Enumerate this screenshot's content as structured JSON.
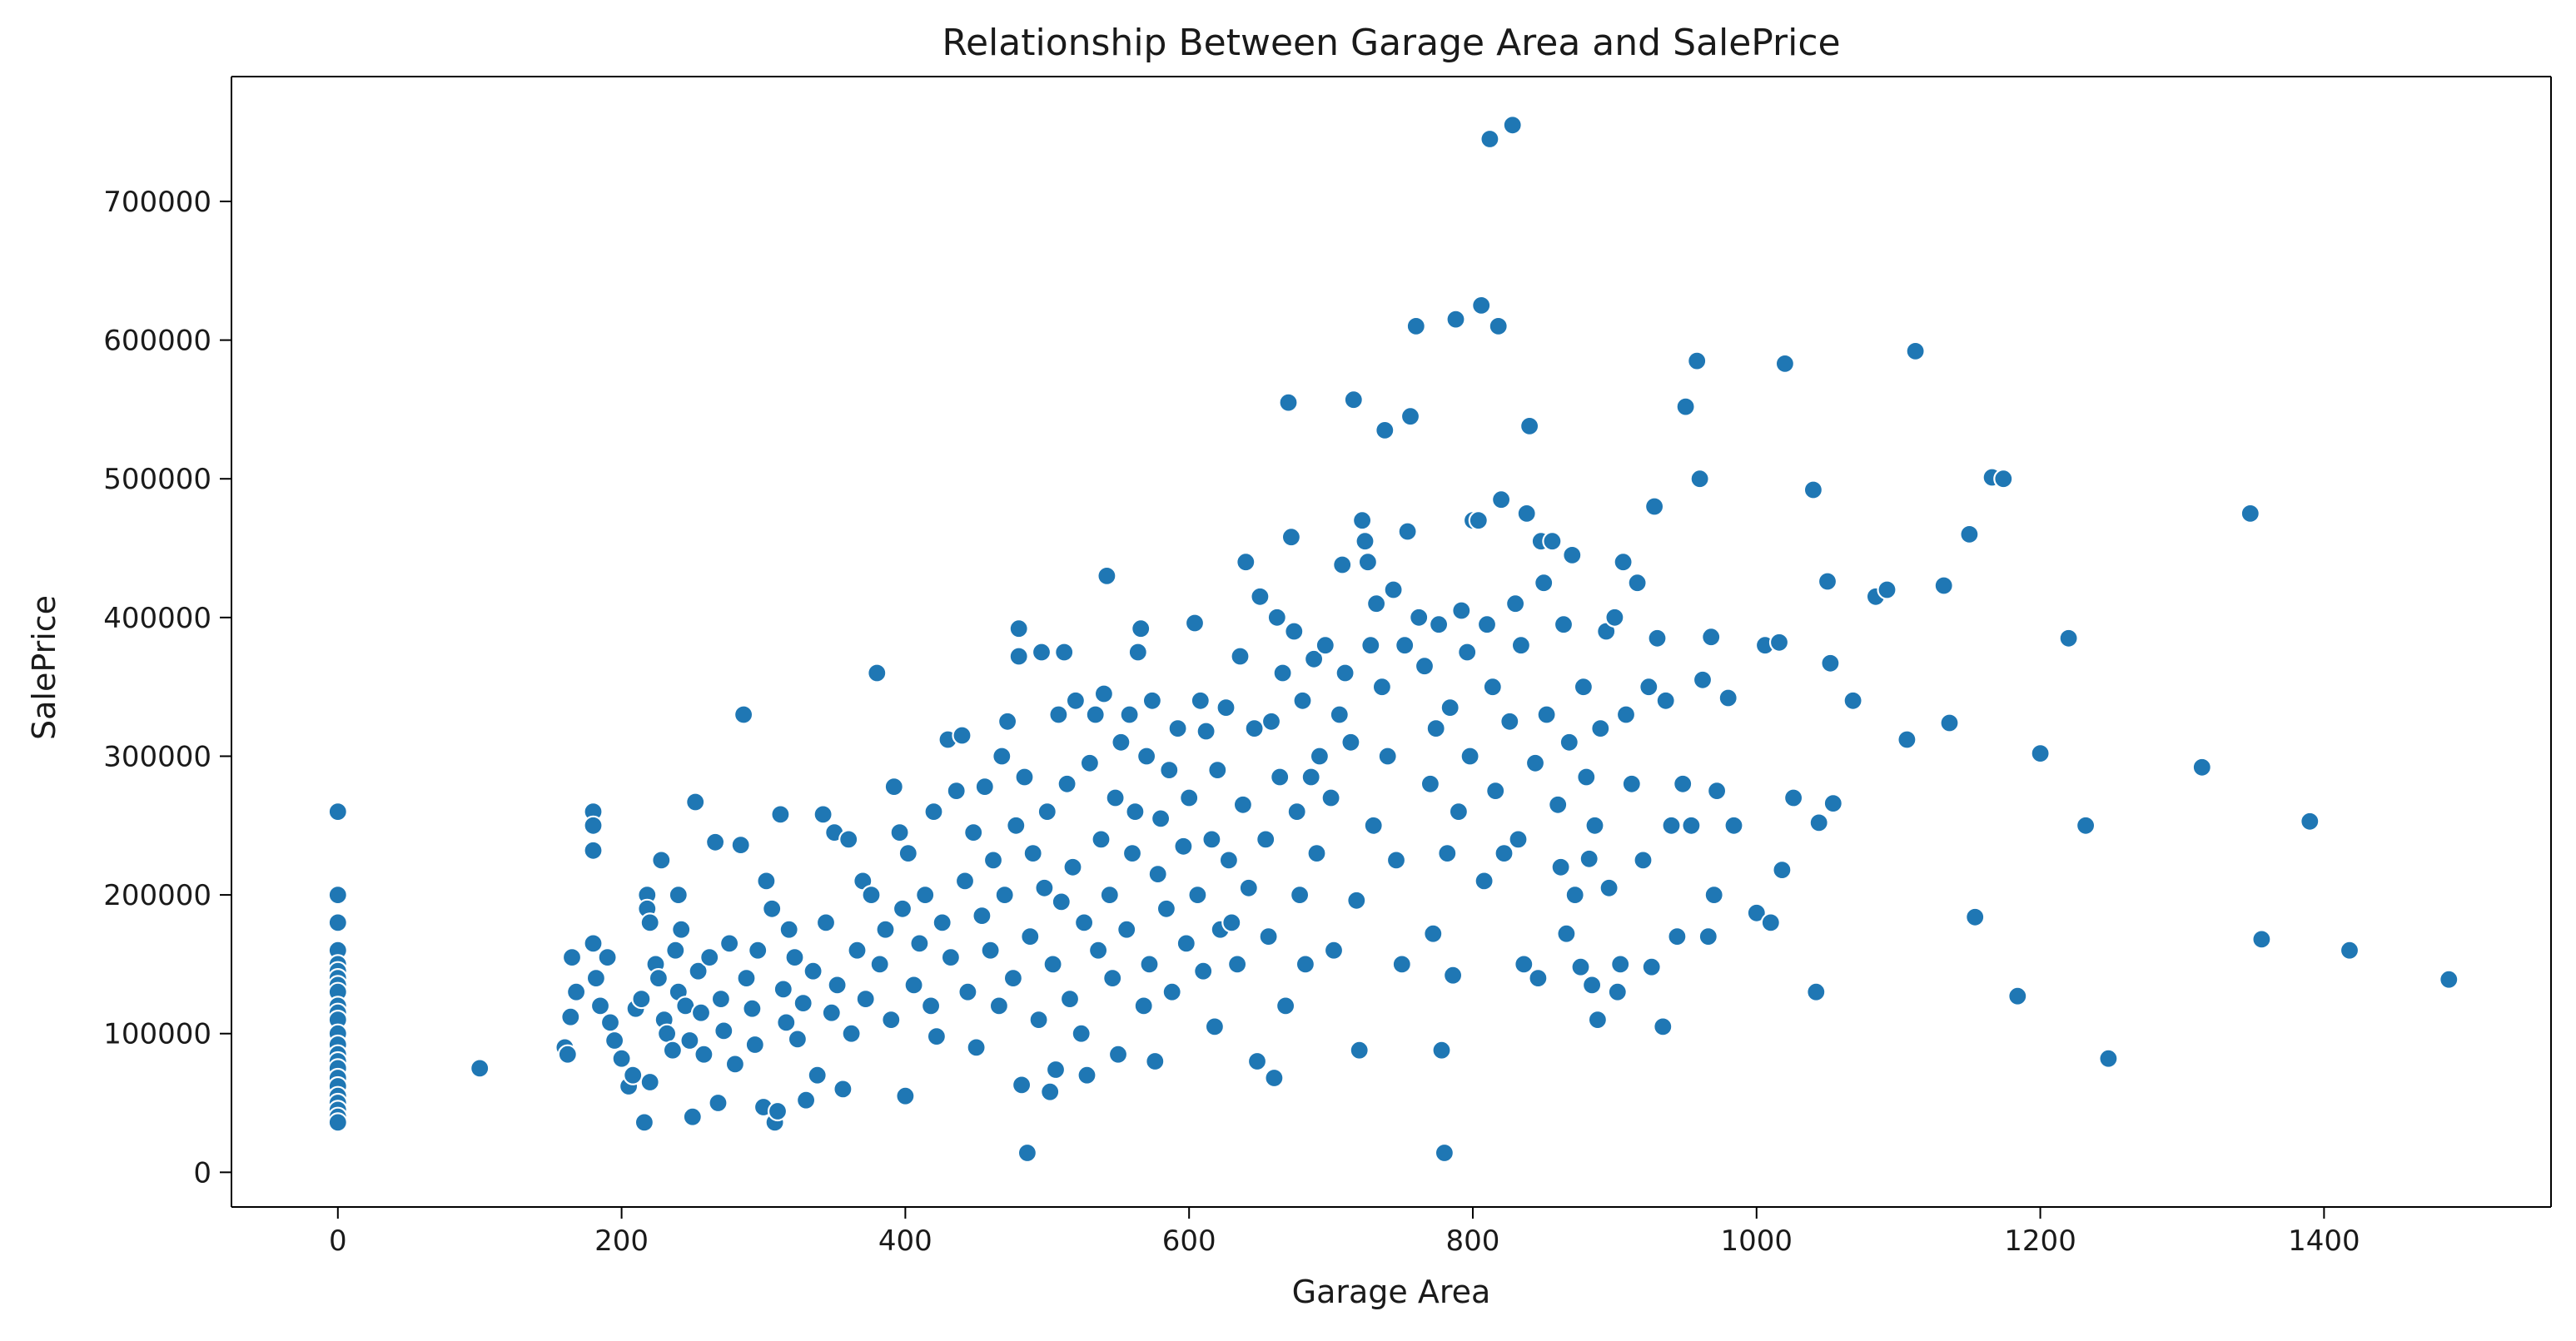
{
  "chart_data": {
    "type": "scatter",
    "title": "Relationship Between Garage Area and SalePrice",
    "xlabel": "Garage Area",
    "ylabel": "SalePrice",
    "xlim": [
      -75,
      1560
    ],
    "ylim": [
      -25000,
      790000
    ],
    "xticks": [
      0,
      200,
      400,
      600,
      800,
      1000,
      1200,
      1400
    ],
    "yticks": [
      0,
      100000,
      200000,
      300000,
      400000,
      500000,
      600000,
      700000
    ],
    "grid": false,
    "colors": {
      "points": "#1f77b4",
      "point_edge": "#ffffff"
    },
    "points": [
      [
        0,
        260000
      ],
      [
        0,
        200000
      ],
      [
        0,
        180000
      ],
      [
        0,
        160000
      ],
      [
        0,
        150000
      ],
      [
        0,
        145000
      ],
      [
        0,
        140000
      ],
      [
        0,
        135000
      ],
      [
        0,
        130000
      ],
      [
        0,
        120000
      ],
      [
        0,
        115000
      ],
      [
        0,
        110000
      ],
      [
        0,
        100000
      ],
      [
        0,
        92000
      ],
      [
        0,
        85000
      ],
      [
        0,
        80000
      ],
      [
        0,
        75000
      ],
      [
        0,
        68000
      ],
      [
        0,
        62000
      ],
      [
        0,
        55000
      ],
      [
        0,
        50000
      ],
      [
        0,
        45000
      ],
      [
        0,
        40000
      ],
      [
        0,
        36000
      ],
      [
        100,
        75000
      ],
      [
        160,
        90000
      ],
      [
        162,
        85000
      ],
      [
        164,
        112000
      ],
      [
        165,
        155000
      ],
      [
        168,
        130000
      ],
      [
        180,
        260000
      ],
      [
        180,
        250000
      ],
      [
        180,
        232000
      ],
      [
        180,
        165000
      ],
      [
        182,
        140000
      ],
      [
        185,
        120000
      ],
      [
        190,
        155000
      ],
      [
        192,
        108000
      ],
      [
        195,
        95000
      ],
      [
        200,
        82000
      ],
      [
        205,
        62000
      ],
      [
        208,
        70000
      ],
      [
        210,
        118000
      ],
      [
        214,
        125000
      ],
      [
        216,
        36000
      ],
      [
        218,
        200000
      ],
      [
        218,
        190000
      ],
      [
        220,
        180000
      ],
      [
        220,
        65000
      ],
      [
        224,
        150000
      ],
      [
        226,
        140000
      ],
      [
        228,
        225000
      ],
      [
        230,
        110000
      ],
      [
        232,
        100000
      ],
      [
        236,
        88000
      ],
      [
        238,
        160000
      ],
      [
        240,
        200000
      ],
      [
        240,
        130000
      ],
      [
        242,
        175000
      ],
      [
        245,
        120000
      ],
      [
        248,
        95000
      ],
      [
        250,
        40000
      ],
      [
        252,
        267000
      ],
      [
        254,
        145000
      ],
      [
        256,
        115000
      ],
      [
        258,
        85000
      ],
      [
        262,
        155000
      ],
      [
        266,
        238000
      ],
      [
        268,
        50000
      ],
      [
        270,
        125000
      ],
      [
        272,
        102000
      ],
      [
        276,
        165000
      ],
      [
        280,
        78000
      ],
      [
        284,
        236000
      ],
      [
        286,
        330000
      ],
      [
        288,
        140000
      ],
      [
        292,
        118000
      ],
      [
        294,
        92000
      ],
      [
        296,
        160000
      ],
      [
        300,
        47000
      ],
      [
        302,
        210000
      ],
      [
        306,
        190000
      ],
      [
        308,
        36000
      ],
      [
        310,
        44000
      ],
      [
        312,
        258000
      ],
      [
        314,
        132000
      ],
      [
        316,
        108000
      ],
      [
        318,
        175000
      ],
      [
        322,
        155000
      ],
      [
        324,
        96000
      ],
      [
        328,
        122000
      ],
      [
        330,
        52000
      ],
      [
        335,
        145000
      ],
      [
        338,
        70000
      ],
      [
        342,
        258000
      ],
      [
        344,
        180000
      ],
      [
        348,
        115000
      ],
      [
        350,
        245000
      ],
      [
        352,
        135000
      ],
      [
        356,
        60000
      ],
      [
        360,
        240000
      ],
      [
        362,
        100000
      ],
      [
        366,
        160000
      ],
      [
        370,
        210000
      ],
      [
        372,
        125000
      ],
      [
        376,
        200000
      ],
      [
        380,
        360000
      ],
      [
        382,
        150000
      ],
      [
        386,
        175000
      ],
      [
        390,
        110000
      ],
      [
        392,
        278000
      ],
      [
        396,
        245000
      ],
      [
        398,
        190000
      ],
      [
        400,
        55000
      ],
      [
        402,
        230000
      ],
      [
        406,
        135000
      ],
      [
        410,
        165000
      ],
      [
        414,
        200000
      ],
      [
        418,
        120000
      ],
      [
        420,
        260000
      ],
      [
        422,
        98000
      ],
      [
        426,
        180000
      ],
      [
        430,
        312000
      ],
      [
        432,
        155000
      ],
      [
        436,
        275000
      ],
      [
        440,
        315000
      ],
      [
        442,
        210000
      ],
      [
        444,
        130000
      ],
      [
        448,
        245000
      ],
      [
        450,
        90000
      ],
      [
        454,
        185000
      ],
      [
        456,
        278000
      ],
      [
        460,
        160000
      ],
      [
        462,
        225000
      ],
      [
        466,
        120000
      ],
      [
        468,
        300000
      ],
      [
        470,
        200000
      ],
      [
        472,
        325000
      ],
      [
        476,
        140000
      ],
      [
        478,
        250000
      ],
      [
        480,
        392000
      ],
      [
        480,
        372000
      ],
      [
        482,
        63000
      ],
      [
        484,
        285000
      ],
      [
        486,
        14000
      ],
      [
        488,
        170000
      ],
      [
        490,
        230000
      ],
      [
        494,
        110000
      ],
      [
        496,
        375000
      ],
      [
        498,
        205000
      ],
      [
        500,
        260000
      ],
      [
        502,
        58000
      ],
      [
        504,
        150000
      ],
      [
        506,
        74000
      ],
      [
        508,
        330000
      ],
      [
        510,
        195000
      ],
      [
        512,
        375000
      ],
      [
        514,
        280000
      ],
      [
        516,
        125000
      ],
      [
        518,
        220000
      ],
      [
        520,
        340000
      ],
      [
        524,
        100000
      ],
      [
        526,
        180000
      ],
      [
        528,
        70000
      ],
      [
        530,
        295000
      ],
      [
        534,
        330000
      ],
      [
        536,
        160000
      ],
      [
        538,
        240000
      ],
      [
        540,
        345000
      ],
      [
        542,
        430000
      ],
      [
        544,
        200000
      ],
      [
        546,
        140000
      ],
      [
        548,
        270000
      ],
      [
        550,
        85000
      ],
      [
        552,
        310000
      ],
      [
        556,
        175000
      ],
      [
        558,
        330000
      ],
      [
        560,
        230000
      ],
      [
        562,
        260000
      ],
      [
        564,
        375000
      ],
      [
        566,
        392000
      ],
      [
        568,
        120000
      ],
      [
        570,
        300000
      ],
      [
        572,
        150000
      ],
      [
        574,
        340000
      ],
      [
        576,
        80000
      ],
      [
        578,
        215000
      ],
      [
        580,
        255000
      ],
      [
        584,
        190000
      ],
      [
        586,
        290000
      ],
      [
        588,
        130000
      ],
      [
        592,
        320000
      ],
      [
        596,
        235000
      ],
      [
        598,
        165000
      ],
      [
        600,
        270000
      ],
      [
        604,
        396000
      ],
      [
        606,
        200000
      ],
      [
        608,
        340000
      ],
      [
        610,
        145000
      ],
      [
        612,
        318000
      ],
      [
        616,
        240000
      ],
      [
        618,
        105000
      ],
      [
        620,
        290000
      ],
      [
        622,
        175000
      ],
      [
        626,
        335000
      ],
      [
        628,
        225000
      ],
      [
        630,
        180000
      ],
      [
        634,
        150000
      ],
      [
        636,
        372000
      ],
      [
        638,
        265000
      ],
      [
        640,
        440000
      ],
      [
        642,
        205000
      ],
      [
        646,
        320000
      ],
      [
        648,
        80000
      ],
      [
        650,
        415000
      ],
      [
        654,
        240000
      ],
      [
        656,
        170000
      ],
      [
        658,
        325000
      ],
      [
        660,
        68000
      ],
      [
        662,
        400000
      ],
      [
        664,
        285000
      ],
      [
        666,
        360000
      ],
      [
        668,
        120000
      ],
      [
        670,
        555000
      ],
      [
        672,
        458000
      ],
      [
        674,
        390000
      ],
      [
        676,
        260000
      ],
      [
        678,
        200000
      ],
      [
        680,
        340000
      ],
      [
        682,
        150000
      ],
      [
        686,
        285000
      ],
      [
        688,
        370000
      ],
      [
        690,
        230000
      ],
      [
        692,
        300000
      ],
      [
        696,
        380000
      ],
      [
        700,
        270000
      ],
      [
        702,
        160000
      ],
      [
        706,
        330000
      ],
      [
        708,
        438000
      ],
      [
        710,
        360000
      ],
      [
        714,
        310000
      ],
      [
        716,
        557000
      ],
      [
        718,
        196000
      ],
      [
        720,
        88000
      ],
      [
        722,
        470000
      ],
      [
        724,
        455000
      ],
      [
        726,
        440000
      ],
      [
        728,
        380000
      ],
      [
        730,
        250000
      ],
      [
        732,
        410000
      ],
      [
        736,
        350000
      ],
      [
        738,
        535000
      ],
      [
        740,
        300000
      ],
      [
        744,
        420000
      ],
      [
        746,
        225000
      ],
      [
        750,
        150000
      ],
      [
        752,
        380000
      ],
      [
        754,
        462000
      ],
      [
        756,
        545000
      ],
      [
        760,
        610000
      ],
      [
        762,
        400000
      ],
      [
        766,
        365000
      ],
      [
        770,
        280000
      ],
      [
        772,
        172000
      ],
      [
        774,
        320000
      ],
      [
        776,
        395000
      ],
      [
        778,
        88000
      ],
      [
        780,
        14000
      ],
      [
        782,
        230000
      ],
      [
        784,
        335000
      ],
      [
        786,
        142000
      ],
      [
        788,
        615000
      ],
      [
        790,
        260000
      ],
      [
        792,
        405000
      ],
      [
        796,
        375000
      ],
      [
        798,
        300000
      ],
      [
        800,
        470000
      ],
      [
        804,
        470000
      ],
      [
        806,
        625000
      ],
      [
        808,
        210000
      ],
      [
        810,
        395000
      ],
      [
        812,
        745000
      ],
      [
        814,
        350000
      ],
      [
        816,
        275000
      ],
      [
        818,
        610000
      ],
      [
        820,
        485000
      ],
      [
        822,
        230000
      ],
      [
        826,
        325000
      ],
      [
        828,
        755000
      ],
      [
        830,
        410000
      ],
      [
        832,
        240000
      ],
      [
        834,
        380000
      ],
      [
        836,
        150000
      ],
      [
        838,
        475000
      ],
      [
        840,
        538000
      ],
      [
        844,
        295000
      ],
      [
        846,
        140000
      ],
      [
        848,
        455000
      ],
      [
        850,
        425000
      ],
      [
        852,
        330000
      ],
      [
        856,
        455000
      ],
      [
        860,
        265000
      ],
      [
        862,
        220000
      ],
      [
        864,
        395000
      ],
      [
        866,
        172000
      ],
      [
        868,
        310000
      ],
      [
        870,
        445000
      ],
      [
        872,
        200000
      ],
      [
        876,
        148000
      ],
      [
        878,
        350000
      ],
      [
        880,
        285000
      ],
      [
        882,
        226000
      ],
      [
        884,
        135000
      ],
      [
        886,
        250000
      ],
      [
        888,
        110000
      ],
      [
        890,
        320000
      ],
      [
        894,
        390000
      ],
      [
        896,
        205000
      ],
      [
        900,
        400000
      ],
      [
        902,
        130000
      ],
      [
        904,
        150000
      ],
      [
        906,
        440000
      ],
      [
        908,
        330000
      ],
      [
        912,
        280000
      ],
      [
        916,
        425000
      ],
      [
        920,
        225000
      ],
      [
        924,
        350000
      ],
      [
        926,
        148000
      ],
      [
        928,
        480000
      ],
      [
        930,
        385000
      ],
      [
        934,
        105000
      ],
      [
        936,
        340000
      ],
      [
        940,
        250000
      ],
      [
        944,
        170000
      ],
      [
        948,
        280000
      ],
      [
        950,
        552000
      ],
      [
        954,
        250000
      ],
      [
        958,
        585000
      ],
      [
        960,
        500000
      ],
      [
        962,
        355000
      ],
      [
        966,
        170000
      ],
      [
        968,
        386000
      ],
      [
        970,
        200000
      ],
      [
        972,
        275000
      ],
      [
        980,
        342000
      ],
      [
        984,
        250000
      ],
      [
        1000,
        187000
      ],
      [
        1006,
        380000
      ],
      [
        1010,
        180000
      ],
      [
        1016,
        382000
      ],
      [
        1018,
        218000
      ],
      [
        1020,
        583000
      ],
      [
        1026,
        270000
      ],
      [
        1040,
        492000
      ],
      [
        1042,
        130000
      ],
      [
        1044,
        252000
      ],
      [
        1050,
        426000
      ],
      [
        1052,
        367000
      ],
      [
        1054,
        266000
      ],
      [
        1068,
        340000
      ],
      [
        1084,
        415000
      ],
      [
        1092,
        420000
      ],
      [
        1106,
        312000
      ],
      [
        1112,
        592000
      ],
      [
        1132,
        423000
      ],
      [
        1136,
        324000
      ],
      [
        1150,
        460000
      ],
      [
        1154,
        184000
      ],
      [
        1166,
        501000
      ],
      [
        1174,
        500000
      ],
      [
        1184,
        127000
      ],
      [
        1200,
        302000
      ],
      [
        1220,
        385000
      ],
      [
        1232,
        250000
      ],
      [
        1248,
        82000
      ],
      [
        1314,
        292000
      ],
      [
        1348,
        475000
      ],
      [
        1356,
        168000
      ],
      [
        1390,
        253000
      ],
      [
        1418,
        160000
      ],
      [
        1488,
        139000
      ]
    ]
  }
}
